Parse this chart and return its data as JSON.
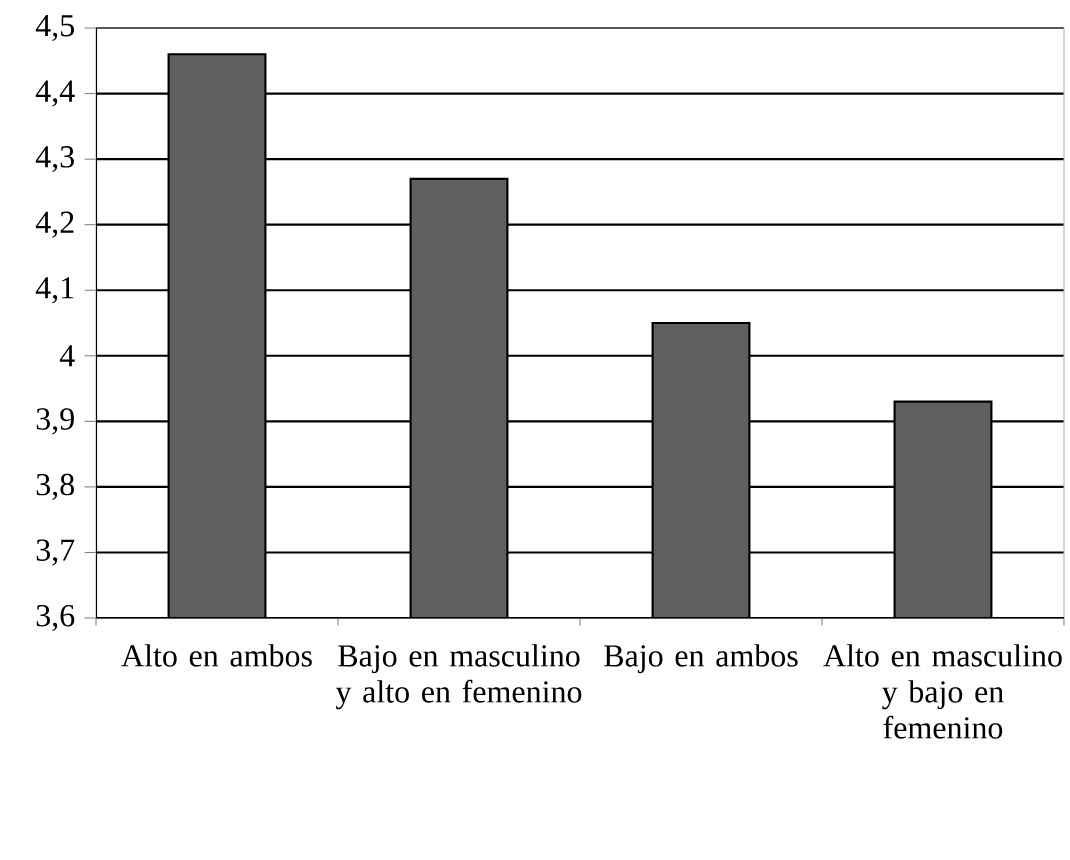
{
  "chart_data": {
    "type": "bar",
    "categories": [
      "Alto en ambos",
      "Bajo en masculino y alto en femenino",
      "Bajo en ambos",
      "Alto en masculino y bajo en femenino"
    ],
    "values": [
      4.46,
      4.27,
      4.05,
      3.93
    ],
    "color": "#606060",
    "ylim": [
      3.6,
      4.5
    ],
    "yticks": [
      {
        "value": 3.6,
        "label": "3,6"
      },
      {
        "value": 3.7,
        "label": "3,7"
      },
      {
        "value": 3.8,
        "label": "3,8"
      },
      {
        "value": 3.9,
        "label": "3,9"
      },
      {
        "value": 4.0,
        "label": "4"
      },
      {
        "value": 4.1,
        "label": "4,1"
      },
      {
        "value": 4.2,
        "label": "4,2"
      },
      {
        "value": 4.3,
        "label": "4,3"
      },
      {
        "value": 4.4,
        "label": "4,4"
      },
      {
        "value": 4.5,
        "label": "4,5"
      }
    ],
    "grid": "y"
  }
}
